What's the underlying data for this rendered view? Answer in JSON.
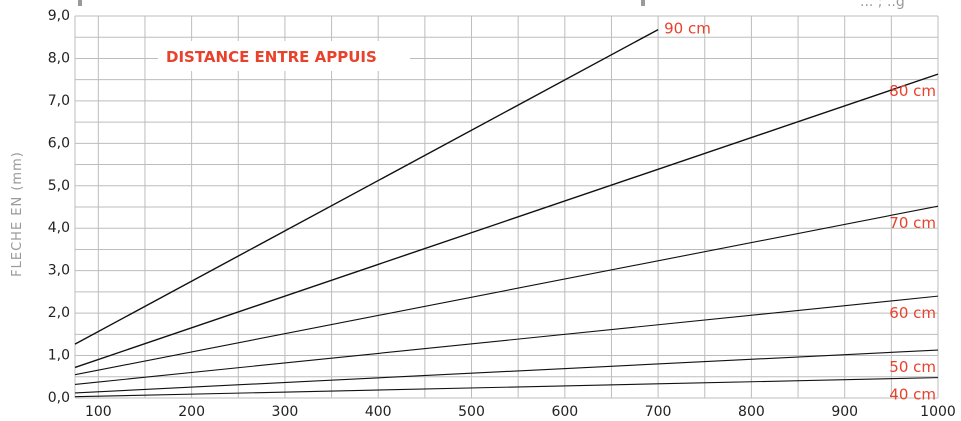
{
  "chart_data": {
    "type": "line",
    "title": "",
    "annotation": "DISTANCE ENTRE APPUIS",
    "xlabel": "",
    "ylabel": "FLECHE EN (mm)",
    "top_fragment": "... ; ..g",
    "xlim": [
      75,
      1000
    ],
    "ylim": [
      0,
      9
    ],
    "x_ticks": [
      "100",
      "200",
      "300",
      "400",
      "500",
      "600",
      "700",
      "800",
      "900",
      "1000"
    ],
    "x_tick_values": [
      100,
      200,
      300,
      400,
      500,
      600,
      700,
      800,
      900,
      1000
    ],
    "y_ticks": [
      "0,0",
      "1,0",
      "2,0",
      "3,0",
      "4,0",
      "5,0",
      "6,0",
      "7,0",
      "8,0",
      "9,0"
    ],
    "y_tick_values": [
      0,
      1,
      2,
      3,
      4,
      5,
      6,
      7,
      8,
      9
    ],
    "grid_x": [
      75,
      100,
      150,
      200,
      250,
      300,
      350,
      400,
      450,
      500,
      550,
      600,
      650,
      700,
      750,
      800,
      850,
      900,
      950,
      1000
    ],
    "grid_y": [
      0,
      0.5,
      1,
      1.5,
      2,
      2.5,
      3,
      3.5,
      4,
      4.5,
      5,
      5.5,
      6,
      6.5,
      7,
      7.5,
      8,
      8.5,
      9
    ],
    "grid": true,
    "series": [
      {
        "name": "90 cm",
        "x": [
          75,
          700
        ],
        "y": [
          1.27,
          8.68
        ]
      },
      {
        "name": "80 cm",
        "x": [
          75,
          1000
        ],
        "y": [
          0.72,
          7.63
        ]
      },
      {
        "name": "70 cm",
        "x": [
          75,
          1000
        ],
        "y": [
          0.55,
          4.52
        ]
      },
      {
        "name": "60 cm",
        "x": [
          75,
          1000
        ],
        "y": [
          0.32,
          2.4
        ]
      },
      {
        "name": "50 cm",
        "x": [
          75,
          1000
        ],
        "y": [
          0.12,
          1.13
        ]
      },
      {
        "name": "40 cm",
        "x": [
          75,
          1000
        ],
        "y": [
          0.03,
          0.48
        ]
      }
    ],
    "label_positions": [
      "end",
      "end-below",
      "end-below",
      "end-below",
      "end-below",
      "end-below"
    ]
  }
}
